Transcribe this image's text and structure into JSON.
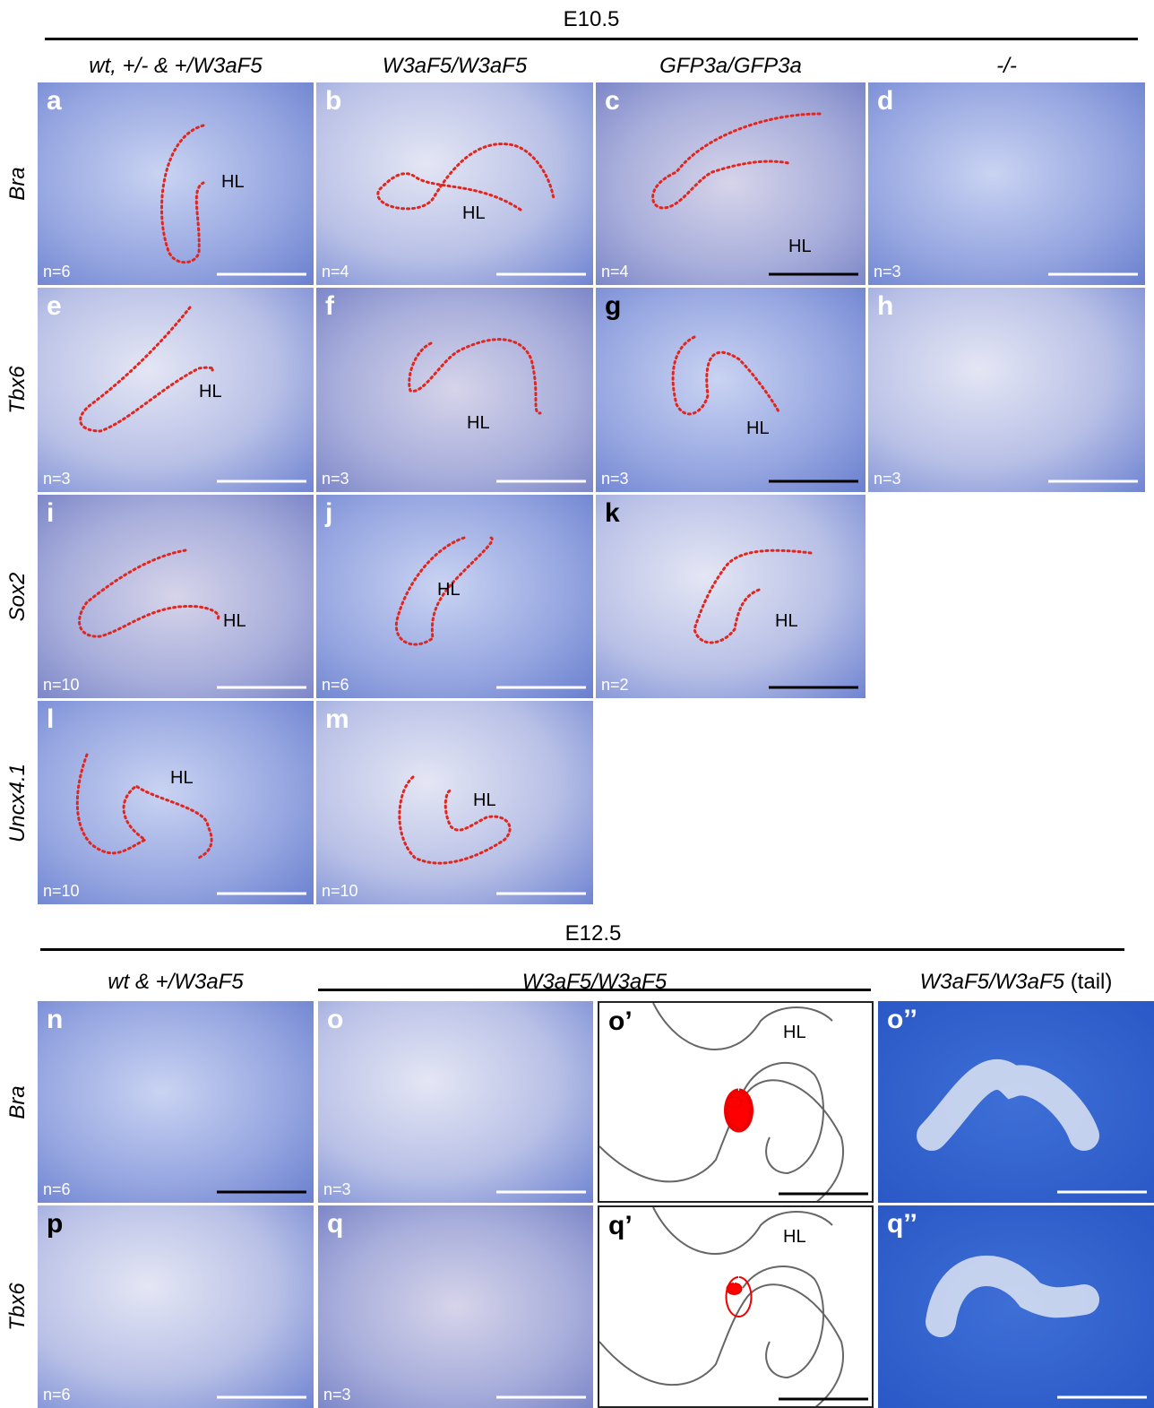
{
  "sections": [
    {
      "title": "E10.5",
      "columns": [
        {
          "text": "wt, +/- & +/W3aF5"
        },
        {
          "text": "W3aF5/W3aF5"
        },
        {
          "text": "GFP3a/GFP3a"
        },
        {
          "text": "-/-"
        }
      ],
      "rows": [
        {
          "gene": "Bra",
          "panels": [
            {
              "letter": "a",
              "n": "n=6",
              "hl": "HL"
            },
            {
              "letter": "b",
              "n": "n=4",
              "hl": "HL"
            },
            {
              "letter": "c",
              "n": "n=4",
              "hl": "HL"
            },
            {
              "letter": "d",
              "n": "n=3"
            }
          ]
        },
        {
          "gene": "Tbx6",
          "panels": [
            {
              "letter": "e",
              "n": "n=3",
              "hl": "HL"
            },
            {
              "letter": "f",
              "n": "n=3",
              "hl": "HL"
            },
            {
              "letter": "g",
              "n": "n=3",
              "hl": "HL"
            },
            {
              "letter": "h",
              "n": "n=3"
            }
          ]
        },
        {
          "gene": "Sox2",
          "panels": [
            {
              "letter": "i",
              "n": "n=10",
              "hl": "HL"
            },
            {
              "letter": "j",
              "n": "n=6",
              "hl": "HL"
            },
            {
              "letter": "k",
              "n": "n=2",
              "hl": "HL"
            }
          ]
        },
        {
          "gene": "Uncx4.1",
          "panels": [
            {
              "letter": "l",
              "n": "n=10",
              "hl": "HL"
            },
            {
              "letter": "m",
              "n": "n=10",
              "hl": "HL"
            }
          ]
        }
      ]
    },
    {
      "title": "E12.5",
      "columns": [
        {
          "text": "wt & +/W3aF5"
        },
        {
          "text": "W3aF5/W3aF5"
        },
        {
          "text": "W3aF5/W3aF5",
          "suffix": "(tail)"
        }
      ],
      "rows": [
        {
          "gene": "Bra",
          "panels": [
            {
              "letter": "n",
              "n": "n=6"
            },
            {
              "letter": "o",
              "n": "n=3"
            },
            {
              "letter": "o’",
              "hl": "HL"
            },
            {
              "letter": "o’’"
            }
          ]
        },
        {
          "gene": "Tbx6",
          "panels": [
            {
              "letter": "p",
              "n": "n=6"
            },
            {
              "letter": "q",
              "n": "n=3"
            },
            {
              "letter": "q’",
              "hl": "HL"
            },
            {
              "letter": "q’’"
            }
          ]
        }
      ]
    }
  ]
}
